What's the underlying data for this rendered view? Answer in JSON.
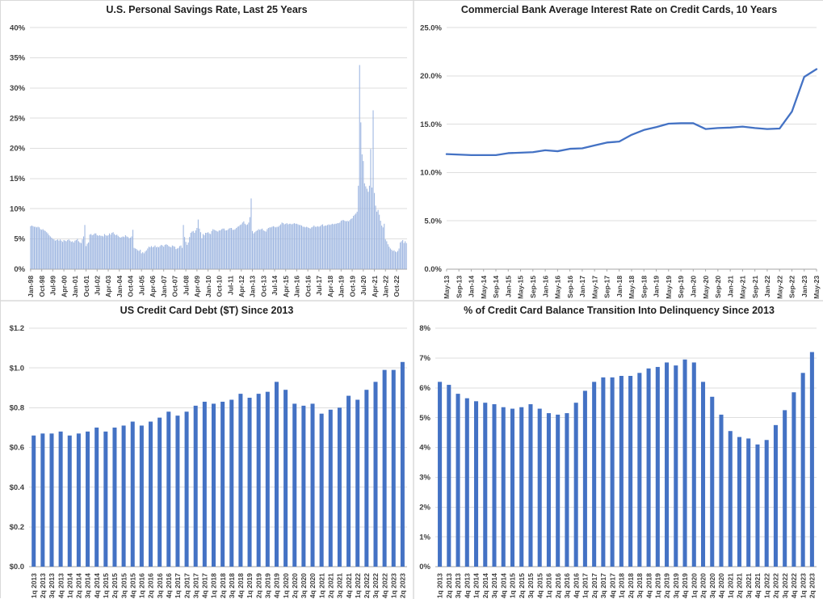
{
  "page": {
    "background": "#ffffff",
    "divider_color": "#e3e3e3",
    "layout_note": "2x2 grid of four charts"
  },
  "chart_data": [
    {
      "id": "personal-savings-rate",
      "type": "bar",
      "title": "U.S. Personal Savings Rate, Last 25 Years",
      "bar_color": "#9fb7e1",
      "grid": true,
      "legend": null,
      "y_min": 0,
      "y_max": 40,
      "y_tick_values": [
        0,
        5,
        10,
        15,
        20,
        25,
        30,
        35,
        40
      ],
      "y_tick_labels": [
        "0%",
        "5%",
        "10%",
        "15%",
        "20%",
        "25%",
        "30%",
        "35%",
        "40%"
      ],
      "x_label_every": 9,
      "x_labels": [
        "Jan-98",
        "Oct-98",
        "Jul-99",
        "Apr-00",
        "Jan-01",
        "Oct-01",
        "Jul-02",
        "Apr-03",
        "Jan-04",
        "Oct-04",
        "Jul-05",
        "Apr-06",
        "Jan-07",
        "Oct-07",
        "Jul-08",
        "Apr-09",
        "Jan-10",
        "Oct-10",
        "Jul-11",
        "Apr-12",
        "Jan-13",
        "Oct-13",
        "Jul-14",
        "Apr-15",
        "Jan-16",
        "Oct-16",
        "Jul-17",
        "Apr-18",
        "Jan-19",
        "Oct-19",
        "Jul-20",
        "Apr-21",
        "Jan-22",
        "Oct-22"
      ],
      "x_unit": "month",
      "values": [
        7.1,
        7.2,
        7.1,
        7.0,
        7.0,
        6.9,
        7.0,
        6.9,
        6.6,
        6.5,
        6.6,
        6.4,
        6.3,
        6.1,
        5.9,
        5.6,
        5.4,
        5.2,
        5.0,
        4.9,
        4.7,
        4.8,
        4.9,
        4.7,
        4.9,
        4.7,
        4.5,
        4.8,
        4.7,
        4.6,
        4.8,
        4.9,
        4.7,
        4.5,
        4.6,
        4.4,
        4.7,
        4.8,
        5.0,
        4.6,
        4.4,
        4.3,
        4.9,
        5.4,
        7.3,
        3.8,
        4.2,
        4.4,
        5.7,
        5.8,
        5.6,
        5.7,
        5.9,
        5.9,
        5.6,
        5.5,
        5.6,
        5.5,
        5.5,
        5.4,
        5.8,
        5.6,
        5.5,
        5.6,
        5.9,
        5.7,
        6.0,
        6.1,
        5.8,
        5.6,
        5.7,
        5.5,
        5.3,
        5.2,
        5.3,
        5.4,
        5.3,
        5.6,
        5.4,
        5.3,
        5.1,
        5.2,
        5.4,
        6.5,
        3.5,
        3.4,
        3.3,
        3.1,
        3.0,
        3.2,
        2.6,
        2.8,
        2.6,
        2.9,
        3.1,
        3.4,
        3.7,
        3.6,
        3.8,
        3.6,
        3.7,
        3.9,
        3.6,
        3.7,
        3.6,
        3.8,
        4.0,
        3.9,
        3.7,
        4.0,
        4.1,
        4.0,
        3.8,
        3.7,
        3.6,
        3.9,
        3.8,
        3.7,
        3.3,
        3.4,
        3.5,
        3.8,
        3.9,
        3.5,
        7.3,
        5.3,
        4.5,
        4.0,
        4.4,
        5.3,
        6.0,
        6.2,
        6.3,
        6.0,
        6.4,
        6.8,
        8.2,
        6.7,
        6.1,
        5.1,
        5.8,
        5.6,
        6.0,
        6.0,
        6.1,
        5.9,
        5.8,
        6.3,
        6.6,
        6.5,
        6.4,
        6.3,
        6.2,
        6.4,
        6.4,
        6.6,
        6.7,
        6.7,
        6.4,
        6.4,
        6.5,
        6.7,
        6.8,
        6.8,
        6.5,
        6.5,
        6.6,
        6.8,
        7.0,
        7.1,
        7.3,
        7.4,
        7.7,
        7.9,
        7.5,
        7.3,
        7.4,
        7.7,
        8.6,
        11.7,
        6.3,
        5.9,
        6.1,
        6.3,
        6.4,
        6.6,
        6.5,
        6.6,
        6.7,
        6.4,
        6.3,
        6.2,
        6.6,
        6.8,
        6.9,
        6.9,
        7.0,
        7.1,
        7.0,
        6.9,
        7.0,
        7.0,
        7.2,
        7.4,
        7.7,
        7.6,
        7.4,
        7.5,
        7.6,
        7.4,
        7.5,
        7.5,
        7.4,
        7.5,
        7.6,
        7.5,
        7.5,
        7.4,
        7.3,
        7.3,
        7.2,
        7.0,
        7.0,
        6.9,
        7.0,
        6.9,
        6.8,
        6.7,
        6.9,
        7.0,
        7.2,
        7.0,
        7.0,
        7.1,
        7.0,
        7.1,
        7.3,
        7.4,
        7.1,
        7.2,
        7.2,
        7.3,
        7.4,
        7.3,
        7.4,
        7.5,
        7.4,
        7.5,
        7.5,
        7.6,
        7.6,
        7.7,
        8.0,
        8.1,
        8.1,
        8.0,
        7.9,
        8.0,
        7.9,
        8.1,
        8.3,
        8.4,
        8.8,
        9.0,
        9.2,
        9.5,
        13.8,
        33.8,
        24.3,
        19.0,
        17.9,
        14.2,
        13.7,
        13.3,
        12.8,
        13.8,
        19.9,
        13.5,
        26.3,
        12.6,
        10.5,
        9.5,
        9.8,
        9.0,
        8.0,
        7.2,
        6.9,
        7.5,
        4.9,
        4.6,
        4.1,
        3.7,
        3.4,
        3.2,
        3.0,
        3.1,
        2.9,
        2.8,
        3.0,
        3.4,
        4.4,
        4.6,
        4.8,
        4.3,
        4.6,
        4.3
      ]
    },
    {
      "id": "credit-card-interest-rate",
      "type": "line",
      "title": "Commercial Bank Average Interest Rate on Credit Cards, 10 Years",
      "line_color": "#4472c4",
      "grid": true,
      "legend": null,
      "y_min": 0,
      "y_max": 25,
      "y_tick_values": [
        0,
        5,
        10,
        15,
        20,
        25
      ],
      "y_tick_labels": [
        "0.0%",
        "5.0%",
        "10.0%",
        "15.0%",
        "20.0%",
        "25.0%"
      ],
      "x_label_every": 1,
      "x_labels": [
        "May-13",
        "Sep-13",
        "Jan-14",
        "May-14",
        "Sep-14",
        "Jan-15",
        "May-15",
        "Sep-15",
        "Jan-16",
        "May-16",
        "Sep-16",
        "Jan-17",
        "May-17",
        "Sep-17",
        "Jan-18",
        "May-18",
        "Sep-18",
        "Jan-19",
        "May-19",
        "Sep-19",
        "Jan-20",
        "May-20",
        "Sep-20",
        "Jan-21",
        "May-21",
        "Sep-21",
        "Jan-22",
        "May-22",
        "Sep-22",
        "Jan-23",
        "May-23"
      ],
      "x_unit": "month",
      "values": [
        11.9,
        11.85,
        11.8,
        11.8,
        11.8,
        12.0,
        12.05,
        12.1,
        12.3,
        12.2,
        12.45,
        12.5,
        12.8,
        13.1,
        13.2,
        13.9,
        14.4,
        14.7,
        15.05,
        15.1,
        15.1,
        14.5,
        14.6,
        14.65,
        14.75,
        14.6,
        14.5,
        14.55,
        16.3,
        19.9,
        20.7
      ]
    },
    {
      "id": "credit-card-debt",
      "type": "bar",
      "title": "US Credit Card Debt ($T) Since 2013",
      "bar_color": "#4472c4",
      "grid": true,
      "legend": null,
      "y_min": 0,
      "y_max": 1.2,
      "y_tick_values": [
        0,
        0.2,
        0.4,
        0.6,
        0.8,
        1.0,
        1.2
      ],
      "y_tick_labels": [
        "$0.0",
        "$0.2",
        "$0.4",
        "$0.6",
        "$0.8",
        "$1.0",
        "$1.2"
      ],
      "x_label_every": 1,
      "x_labels": [
        "1q 2013",
        "2q 2013",
        "3q 2013",
        "4q 2013",
        "1q 2014",
        "2q 2014",
        "3q 2014",
        "4q 2014",
        "1q 2015",
        "2q 2015",
        "3q 2015",
        "4q 2015",
        "1q 2016",
        "2q 2016",
        "3q 2016",
        "4q 2016",
        "1q 2017",
        "2q 2017",
        "3q 2017",
        "4q 2017",
        "1q 2018",
        "2q 2018",
        "3q 2018",
        "4q 2018",
        "1q 2019",
        "2q 2019",
        "3q 2019",
        "4q 2019",
        "1q 2020",
        "2q 2020",
        "3q 2020",
        "4q 2020",
        "1q 2021",
        "2q 2021",
        "3q 2021",
        "4q 2021",
        "1q 2022",
        "2q 2022",
        "3q 2022",
        "4q 2022",
        "1q 2023",
        "2q 2023"
      ],
      "x_unit": "quarter",
      "values": [
        0.66,
        0.67,
        0.67,
        0.68,
        0.66,
        0.67,
        0.68,
        0.7,
        0.68,
        0.7,
        0.71,
        0.73,
        0.71,
        0.73,
        0.75,
        0.78,
        0.76,
        0.78,
        0.81,
        0.83,
        0.82,
        0.83,
        0.84,
        0.87,
        0.85,
        0.87,
        0.88,
        0.93,
        0.89,
        0.82,
        0.81,
        0.82,
        0.77,
        0.79,
        0.8,
        0.86,
        0.84,
        0.89,
        0.93,
        0.99,
        0.99,
        1.03
      ]
    },
    {
      "id": "delinquency-transition-rate",
      "type": "bar",
      "title": "% of Credit Card Balance Transition Into Delinquency Since 2013",
      "bar_color": "#4472c4",
      "grid": true,
      "legend": null,
      "y_min": 0,
      "y_max": 8,
      "y_tick_values": [
        0,
        1,
        2,
        3,
        4,
        5,
        6,
        7,
        8
      ],
      "y_tick_labels": [
        "0%",
        "1%",
        "2%",
        "3%",
        "4%",
        "5%",
        "6%",
        "7%",
        "8%"
      ],
      "x_label_every": 1,
      "x_labels": [
        "1q 2013",
        "2q 2013",
        "3q 2013",
        "4q 2013",
        "1q 2014",
        "2q 2014",
        "3q 2014",
        "4q 2014",
        "1q 2015",
        "2q 2015",
        "3q 2015",
        "4q 2015",
        "1q 2016",
        "2q 2016",
        "3q 2016",
        "4q 2016",
        "1q 2017",
        "2q 2017",
        "3q 2017",
        "4q 2017",
        "1q 2018",
        "2q 2018",
        "3q 2018",
        "4q 2018",
        "1q 2019",
        "2q 2019",
        "3q 2019",
        "4q 2019",
        "1q 2020",
        "2q 2020",
        "3q 2020",
        "4q 2020",
        "1q 2021",
        "2q 2021",
        "3q 2021",
        "4q 2021",
        "1q 2022",
        "2q 2022",
        "3q 2022",
        "4q 2022",
        "1q 2023",
        "2q 2023"
      ],
      "x_unit": "quarter",
      "values": [
        6.2,
        6.1,
        5.8,
        5.65,
        5.55,
        5.5,
        5.45,
        5.35,
        5.3,
        5.35,
        5.45,
        5.3,
        5.15,
        5.1,
        5.15,
        5.5,
        5.9,
        6.2,
        6.35,
        6.35,
        6.4,
        6.4,
        6.5,
        6.65,
        6.7,
        6.85,
        6.75,
        6.95,
        6.85,
        6.2,
        5.7,
        5.1,
        4.55,
        4.35,
        4.3,
        4.1,
        4.25,
        4.75,
        5.25,
        5.85,
        6.5,
        7.2
      ]
    }
  ]
}
